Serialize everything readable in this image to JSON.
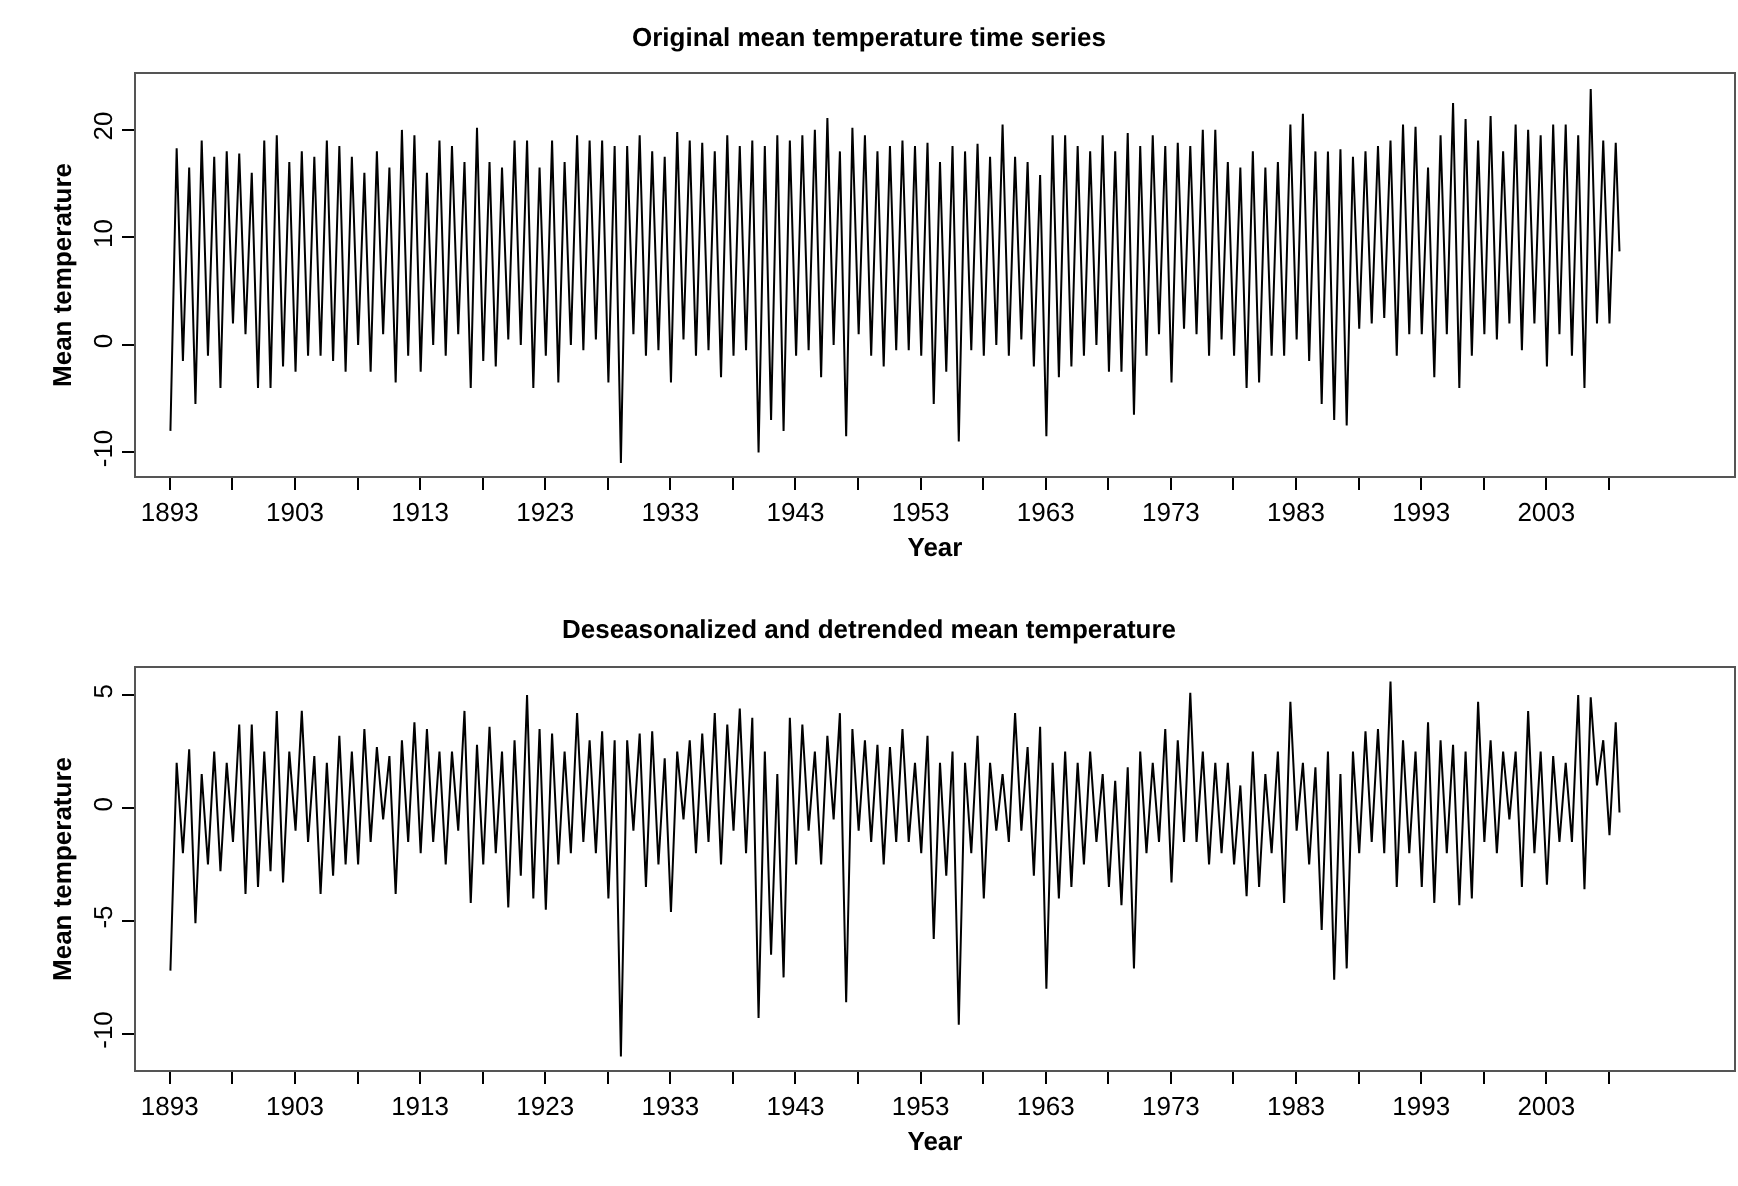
{
  "chart_data": [
    {
      "type": "line",
      "title": "Original mean temperature time series",
      "xlabel": "Year",
      "ylabel": "Mean temperature",
      "grid": false,
      "marker": "none",
      "line_style": "solid",
      "xlim": [
        1890.3,
        2018
      ],
      "ylim": [
        -12.2,
        25.2
      ],
      "xticks": [
        1893,
        {
          "value": 1898,
          "label": null
        },
        1903,
        {
          "value": 1908,
          "label": null
        },
        1913,
        {
          "value": 1918,
          "label": null
        },
        1923,
        {
          "value": 1928,
          "label": null
        },
        1933,
        {
          "value": 1938,
          "label": null
        },
        1943,
        {
          "value": 1948,
          "label": null
        },
        1953,
        {
          "value": 1958,
          "label": null
        },
        1963,
        {
          "value": 1968,
          "label": null
        },
        1973,
        {
          "value": 1978,
          "label": null
        },
        1983,
        {
          "value": 1988,
          "label": null
        },
        1993,
        {
          "value": 1998,
          "label": null
        },
        2003,
        {
          "value": 2008,
          "label": null
        }
      ],
      "yticks": [
        -10,
        0,
        10,
        20
      ],
      "x": [
        1893.05,
        1893.55,
        1894.05,
        1894.55,
        1895.05,
        1895.55,
        1896.05,
        1896.55,
        1897.05,
        1897.55,
        1898.05,
        1898.55,
        1899.05,
        1899.55,
        1900.05,
        1900.55,
        1901.05,
        1901.55,
        1902.05,
        1902.55,
        1903.05,
        1903.55,
        1904.05,
        1904.55,
        1905.05,
        1905.55,
        1906.05,
        1906.55,
        1907.05,
        1907.55,
        1908.05,
        1908.55,
        1909.05,
        1909.55,
        1910.05,
        1910.55,
        1911.05,
        1911.55,
        1912.05,
        1912.55,
        1913.05,
        1913.55,
        1914.05,
        1914.55,
        1915.05,
        1915.55,
        1916.05,
        1916.55,
        1917.05,
        1917.55,
        1918.05,
        1918.55,
        1919.05,
        1919.55,
        1920.05,
        1920.55,
        1921.05,
        1921.55,
        1922.05,
        1922.55,
        1923.05,
        1923.55,
        1924.05,
        1924.55,
        1925.05,
        1925.55,
        1926.05,
        1926.55,
        1927.05,
        1927.55,
        1928.05,
        1928.55,
        1929.05,
        1929.55,
        1930.05,
        1930.55,
        1931.05,
        1931.55,
        1932.05,
        1932.55,
        1933.05,
        1933.55,
        1934.05,
        1934.55,
        1935.05,
        1935.55,
        1936.05,
        1936.55,
        1937.05,
        1937.55,
        1938.05,
        1938.55,
        1939.05,
        1939.55,
        1940.05,
        1940.55,
        1941.05,
        1941.55,
        1942.05,
        1942.55,
        1943.05,
        1943.55,
        1944.05,
        1944.55,
        1945.05,
        1945.55,
        1946.05,
        1946.55,
        1947.05,
        1947.55,
        1948.05,
        1948.55,
        1949.05,
        1949.55,
        1950.05,
        1950.55,
        1951.05,
        1951.55,
        1952.05,
        1952.55,
        1953.05,
        1953.55,
        1954.05,
        1954.55,
        1955.05,
        1955.55,
        1956.05,
        1956.55,
        1957.05,
        1957.55,
        1958.05,
        1958.55,
        1959.05,
        1959.55,
        1960.05,
        1960.55,
        1961.05,
        1961.55,
        1962.05,
        1962.55,
        1963.05,
        1963.55,
        1964.05,
        1964.55,
        1965.05,
        1965.55,
        1966.05,
        1966.55,
        1967.05,
        1967.55,
        1968.05,
        1968.55,
        1969.05,
        1969.55,
        1970.05,
        1970.55,
        1971.05,
        1971.55,
        1972.05,
        1972.55,
        1973.05,
        1973.55,
        1974.05,
        1974.55,
        1975.05,
        1975.55,
        1976.05,
        1976.55,
        1977.05,
        1977.55,
        1978.05,
        1978.55,
        1979.05,
        1979.55,
        1980.05,
        1980.55,
        1981.05,
        1981.55,
        1982.05,
        1982.55,
        1983.05,
        1983.55,
        1984.05,
        1984.55,
        1985.05,
        1985.55,
        1986.05,
        1986.55,
        1987.05,
        1987.55,
        1988.05,
        1988.55,
        1989.05,
        1989.55,
        1990.05,
        1990.55,
        1991.05,
        1991.55,
        1992.05,
        1992.55,
        1993.05,
        1993.55,
        1994.05,
        1994.55,
        1995.05,
        1995.55,
        1996.05,
        1996.55,
        1997.05,
        1997.55,
        1998.05,
        1998.55,
        1999.05,
        1999.55,
        2000.05,
        2000.55,
        2001.05,
        2001.55,
        2002.05,
        2002.55,
        2003.05,
        2003.55,
        2004.05,
        2004.55,
        2005.05,
        2005.55,
        2006.05,
        2006.55,
        2007.05,
        2007.55,
        2008.05,
        2008.55,
        2008.85
      ],
      "series": [
        {
          "color": "#000000",
          "values": [
            -8,
            18.3,
            -1.5,
            16.5,
            -5.5,
            19,
            -1,
            17.5,
            -4,
            18,
            2,
            17.8,
            1,
            16,
            -4,
            19,
            -4,
            19.5,
            -2,
            17,
            -2.5,
            18,
            -1,
            17.5,
            -1,
            19,
            -1.5,
            18.5,
            -2.5,
            17.5,
            0,
            16,
            -2.5,
            18,
            1,
            16.5,
            -3.5,
            20,
            -1,
            19.5,
            -2.5,
            16,
            0,
            19,
            -1,
            18.5,
            1,
            17,
            -4,
            20.2,
            -1.5,
            17,
            -2,
            16.5,
            0.5,
            19,
            0,
            19,
            -4,
            16.5,
            -1,
            19,
            -3.5,
            17,
            0,
            19.5,
            -0.5,
            19,
            0.5,
            19,
            -3.5,
            18.5,
            -11,
            18.5,
            1,
            19.5,
            -1,
            18,
            -0.5,
            17.5,
            -3.5,
            19.8,
            0.5,
            19,
            -1,
            18.8,
            -0.5,
            18,
            -3,
            19.5,
            -1,
            18.5,
            -0.5,
            19,
            -10,
            18.5,
            -7,
            19.5,
            -8,
            19,
            -1,
            19.5,
            -0.5,
            20,
            -3,
            21.1,
            0,
            18,
            -8.5,
            20.2,
            1,
            19.5,
            -1,
            18,
            -2,
            18.5,
            -0.5,
            19,
            -0.5,
            18.5,
            -1,
            18.8,
            -5.5,
            17,
            -2.5,
            18.5,
            -9,
            18,
            -0.5,
            18.7,
            -1,
            17.5,
            0,
            20.5,
            -1,
            17.5,
            0.5,
            17,
            -2,
            15.8,
            -8.5,
            19.5,
            -3,
            19.5,
            -2,
            18.5,
            -1,
            18,
            0,
            19.5,
            -2.5,
            18,
            -2.5,
            19.7,
            -6.5,
            18.5,
            -1,
            19.5,
            1,
            18.5,
            -3.5,
            18.8,
            1.5,
            18.5,
            1,
            20,
            -1,
            20,
            0.5,
            17,
            -1,
            16.5,
            -4,
            18,
            -3.5,
            16.5,
            -1,
            17,
            -1,
            20.5,
            0.5,
            21.5,
            -1.5,
            18,
            -5.5,
            18,
            -7,
            18.2,
            -7.5,
            17.5,
            1.5,
            18,
            2,
            18.5,
            2.5,
            19,
            -1,
            20.5,
            1,
            20.3,
            1,
            16.5,
            -3,
            19.5,
            1,
            22.5,
            -4,
            21,
            -1,
            19,
            1,
            21.3,
            0.5,
            18,
            2,
            20.5,
            -0.5,
            20,
            2,
            19.5,
            -2,
            20.5,
            1,
            20.5,
            -1,
            19.5,
            -4,
            23.8,
            2,
            19,
            2,
            18.8,
            8.7
          ]
        }
      ]
    },
    {
      "type": "line",
      "title": "Deseasonalized and detrended mean temperature",
      "xlabel": "Year",
      "ylabel": "Mean temperature",
      "grid": false,
      "marker": "none",
      "line_style": "solid",
      "xlim": [
        1890.3,
        2018
      ],
      "ylim": [
        -11.6,
        6.2
      ],
      "xticks": [
        1893,
        {
          "value": 1898,
          "label": null
        },
        1903,
        {
          "value": 1908,
          "label": null
        },
        1913,
        {
          "value": 1918,
          "label": null
        },
        1923,
        {
          "value": 1928,
          "label": null
        },
        1933,
        {
          "value": 1938,
          "label": null
        },
        1943,
        {
          "value": 1948,
          "label": null
        },
        1953,
        {
          "value": 1958,
          "label": null
        },
        1963,
        {
          "value": 1968,
          "label": null
        },
        1973,
        {
          "value": 1978,
          "label": null
        },
        1983,
        {
          "value": 1988,
          "label": null
        },
        1993,
        {
          "value": 1998,
          "label": null
        },
        2003,
        {
          "value": 2008,
          "label": null
        }
      ],
      "yticks": [
        -10,
        -5,
        0,
        5
      ],
      "x": [
        1893.05,
        1893.55,
        1894.05,
        1894.55,
        1895.05,
        1895.55,
        1896.05,
        1896.55,
        1897.05,
        1897.55,
        1898.05,
        1898.55,
        1899.05,
        1899.55,
        1900.05,
        1900.55,
        1901.05,
        1901.55,
        1902.05,
        1902.55,
        1903.05,
        1903.55,
        1904.05,
        1904.55,
        1905.05,
        1905.55,
        1906.05,
        1906.55,
        1907.05,
        1907.55,
        1908.05,
        1908.55,
        1909.05,
        1909.55,
        1910.05,
        1910.55,
        1911.05,
        1911.55,
        1912.05,
        1912.55,
        1913.05,
        1913.55,
        1914.05,
        1914.55,
        1915.05,
        1915.55,
        1916.05,
        1916.55,
        1917.05,
        1917.55,
        1918.05,
        1918.55,
        1919.05,
        1919.55,
        1920.05,
        1920.55,
        1921.05,
        1921.55,
        1922.05,
        1922.55,
        1923.05,
        1923.55,
        1924.05,
        1924.55,
        1925.05,
        1925.55,
        1926.05,
        1926.55,
        1927.05,
        1927.55,
        1928.05,
        1928.55,
        1929.05,
        1929.55,
        1930.05,
        1930.55,
        1931.05,
        1931.55,
        1932.05,
        1932.55,
        1933.05,
        1933.55,
        1934.05,
        1934.55,
        1935.05,
        1935.55,
        1936.05,
        1936.55,
        1937.05,
        1937.55,
        1938.05,
        1938.55,
        1939.05,
        1939.55,
        1940.05,
        1940.55,
        1941.05,
        1941.55,
        1942.05,
        1942.55,
        1943.05,
        1943.55,
        1944.05,
        1944.55,
        1945.05,
        1945.55,
        1946.05,
        1946.55,
        1947.05,
        1947.55,
        1948.05,
        1948.55,
        1949.05,
        1949.55,
        1950.05,
        1950.55,
        1951.05,
        1951.55,
        1952.05,
        1952.55,
        1953.05,
        1953.55,
        1954.05,
        1954.55,
        1955.05,
        1955.55,
        1956.05,
        1956.55,
        1957.05,
        1957.55,
        1958.05,
        1958.55,
        1959.05,
        1959.55,
        1960.05,
        1960.55,
        1961.05,
        1961.55,
        1962.05,
        1962.55,
        1963.05,
        1963.55,
        1964.05,
        1964.55,
        1965.05,
        1965.55,
        1966.05,
        1966.55,
        1967.05,
        1967.55,
        1968.05,
        1968.55,
        1969.05,
        1969.55,
        1970.05,
        1970.55,
        1971.05,
        1971.55,
        1972.05,
        1972.55,
        1973.05,
        1973.55,
        1974.05,
        1974.55,
        1975.05,
        1975.55,
        1976.05,
        1976.55,
        1977.05,
        1977.55,
        1978.05,
        1978.55,
        1979.05,
        1979.55,
        1980.05,
        1980.55,
        1981.05,
        1981.55,
        1982.05,
        1982.55,
        1983.05,
        1983.55,
        1984.05,
        1984.55,
        1985.05,
        1985.55,
        1986.05,
        1986.55,
        1987.05,
        1987.55,
        1988.05,
        1988.55,
        1989.05,
        1989.55,
        1990.05,
        1990.55,
        1991.05,
        1991.55,
        1992.05,
        1992.55,
        1993.05,
        1993.55,
        1994.05,
        1994.55,
        1995.05,
        1995.55,
        1996.05,
        1996.55,
        1997.05,
        1997.55,
        1998.05,
        1998.55,
        1999.05,
        1999.55,
        2000.05,
        2000.55,
        2001.05,
        2001.55,
        2002.05,
        2002.55,
        2003.05,
        2003.55,
        2004.05,
        2004.55,
        2005.05,
        2005.55,
        2006.05,
        2006.55,
        2007.05,
        2007.55,
        2008.05,
        2008.55,
        2008.85
      ],
      "series": [
        {
          "color": "#000000",
          "values": [
            -7.2,
            2,
            -2,
            2.6,
            -5.1,
            1.5,
            -2.5,
            2.5,
            -2.8,
            2,
            -1.5,
            3.7,
            -3.8,
            3.7,
            -3.5,
            2.5,
            -2.8,
            4.3,
            -3.3,
            2.5,
            -1,
            4.3,
            -1.5,
            2.3,
            -3.8,
            2,
            -3,
            3.2,
            -2.5,
            2.5,
            -2.5,
            3.5,
            -1.5,
            2.7,
            -0.5,
            2.3,
            -3.8,
            3,
            -1.5,
            3.8,
            -2,
            3.5,
            -1.5,
            2.5,
            -2.5,
            2.5,
            -1,
            4.3,
            -4.2,
            2.8,
            -2.5,
            3.6,
            -2,
            2.5,
            -4.4,
            3,
            -3,
            5,
            -4,
            3.5,
            -4.5,
            3.3,
            -2.5,
            2.5,
            -2,
            4.2,
            -1.5,
            3,
            -2,
            3.4,
            -4,
            3,
            -11,
            3,
            -1,
            3.3,
            -3.5,
            3.4,
            -2.5,
            2.2,
            -4.6,
            2.5,
            -0.5,
            3,
            -2,
            3.3,
            -1.5,
            4.2,
            -2.5,
            3.7,
            -1,
            4.4,
            -2,
            4,
            -9.3,
            2.5,
            -6.5,
            1.5,
            -7.5,
            4,
            -2.5,
            3.7,
            -1,
            2.5,
            -2.5,
            3.2,
            -0.5,
            4.2,
            -8.6,
            3.5,
            -1,
            3,
            -1.5,
            2.8,
            -2.5,
            2.7,
            -1.5,
            3.5,
            -1.5,
            2,
            -2,
            3.2,
            -5.8,
            2,
            -3,
            2.5,
            -9.6,
            2,
            -2,
            3.2,
            -4,
            2,
            -1,
            1.5,
            -1.5,
            4.2,
            -1,
            2.7,
            -3,
            3.6,
            -8,
            2,
            -4,
            2.5,
            -3.5,
            2,
            -2.5,
            2.5,
            -1.5,
            1.5,
            -3.5,
            1.2,
            -4.3,
            1.8,
            -7.1,
            2.5,
            -2,
            2,
            -1.5,
            3.5,
            -3.3,
            3,
            -1.5,
            5.1,
            -1.5,
            2.5,
            -2.5,
            2,
            -2,
            2,
            -2.5,
            1,
            -3.9,
            2.5,
            -3.5,
            1.5,
            -2,
            2.5,
            -4.2,
            4.7,
            -1,
            2,
            -2.5,
            1.8,
            -5.4,
            2.5,
            -7.6,
            1.5,
            -7.1,
            2.5,
            -2,
            3.4,
            -1.5,
            3.5,
            -2,
            5.6,
            -3.5,
            3,
            -2,
            2.5,
            -3.5,
            3.8,
            -4.2,
            3,
            -2,
            2.8,
            -4.3,
            2.5,
            -4,
            4.7,
            -1.5,
            3,
            -2,
            2.5,
            -0.5,
            2.5,
            -3.5,
            4.3,
            -2,
            2.5,
            -3.4,
            2.3,
            -1.5,
            2,
            -1.5,
            5,
            -3.6,
            4.9,
            1,
            3,
            -1.2,
            3.8,
            -0.2
          ]
        }
      ]
    }
  ]
}
